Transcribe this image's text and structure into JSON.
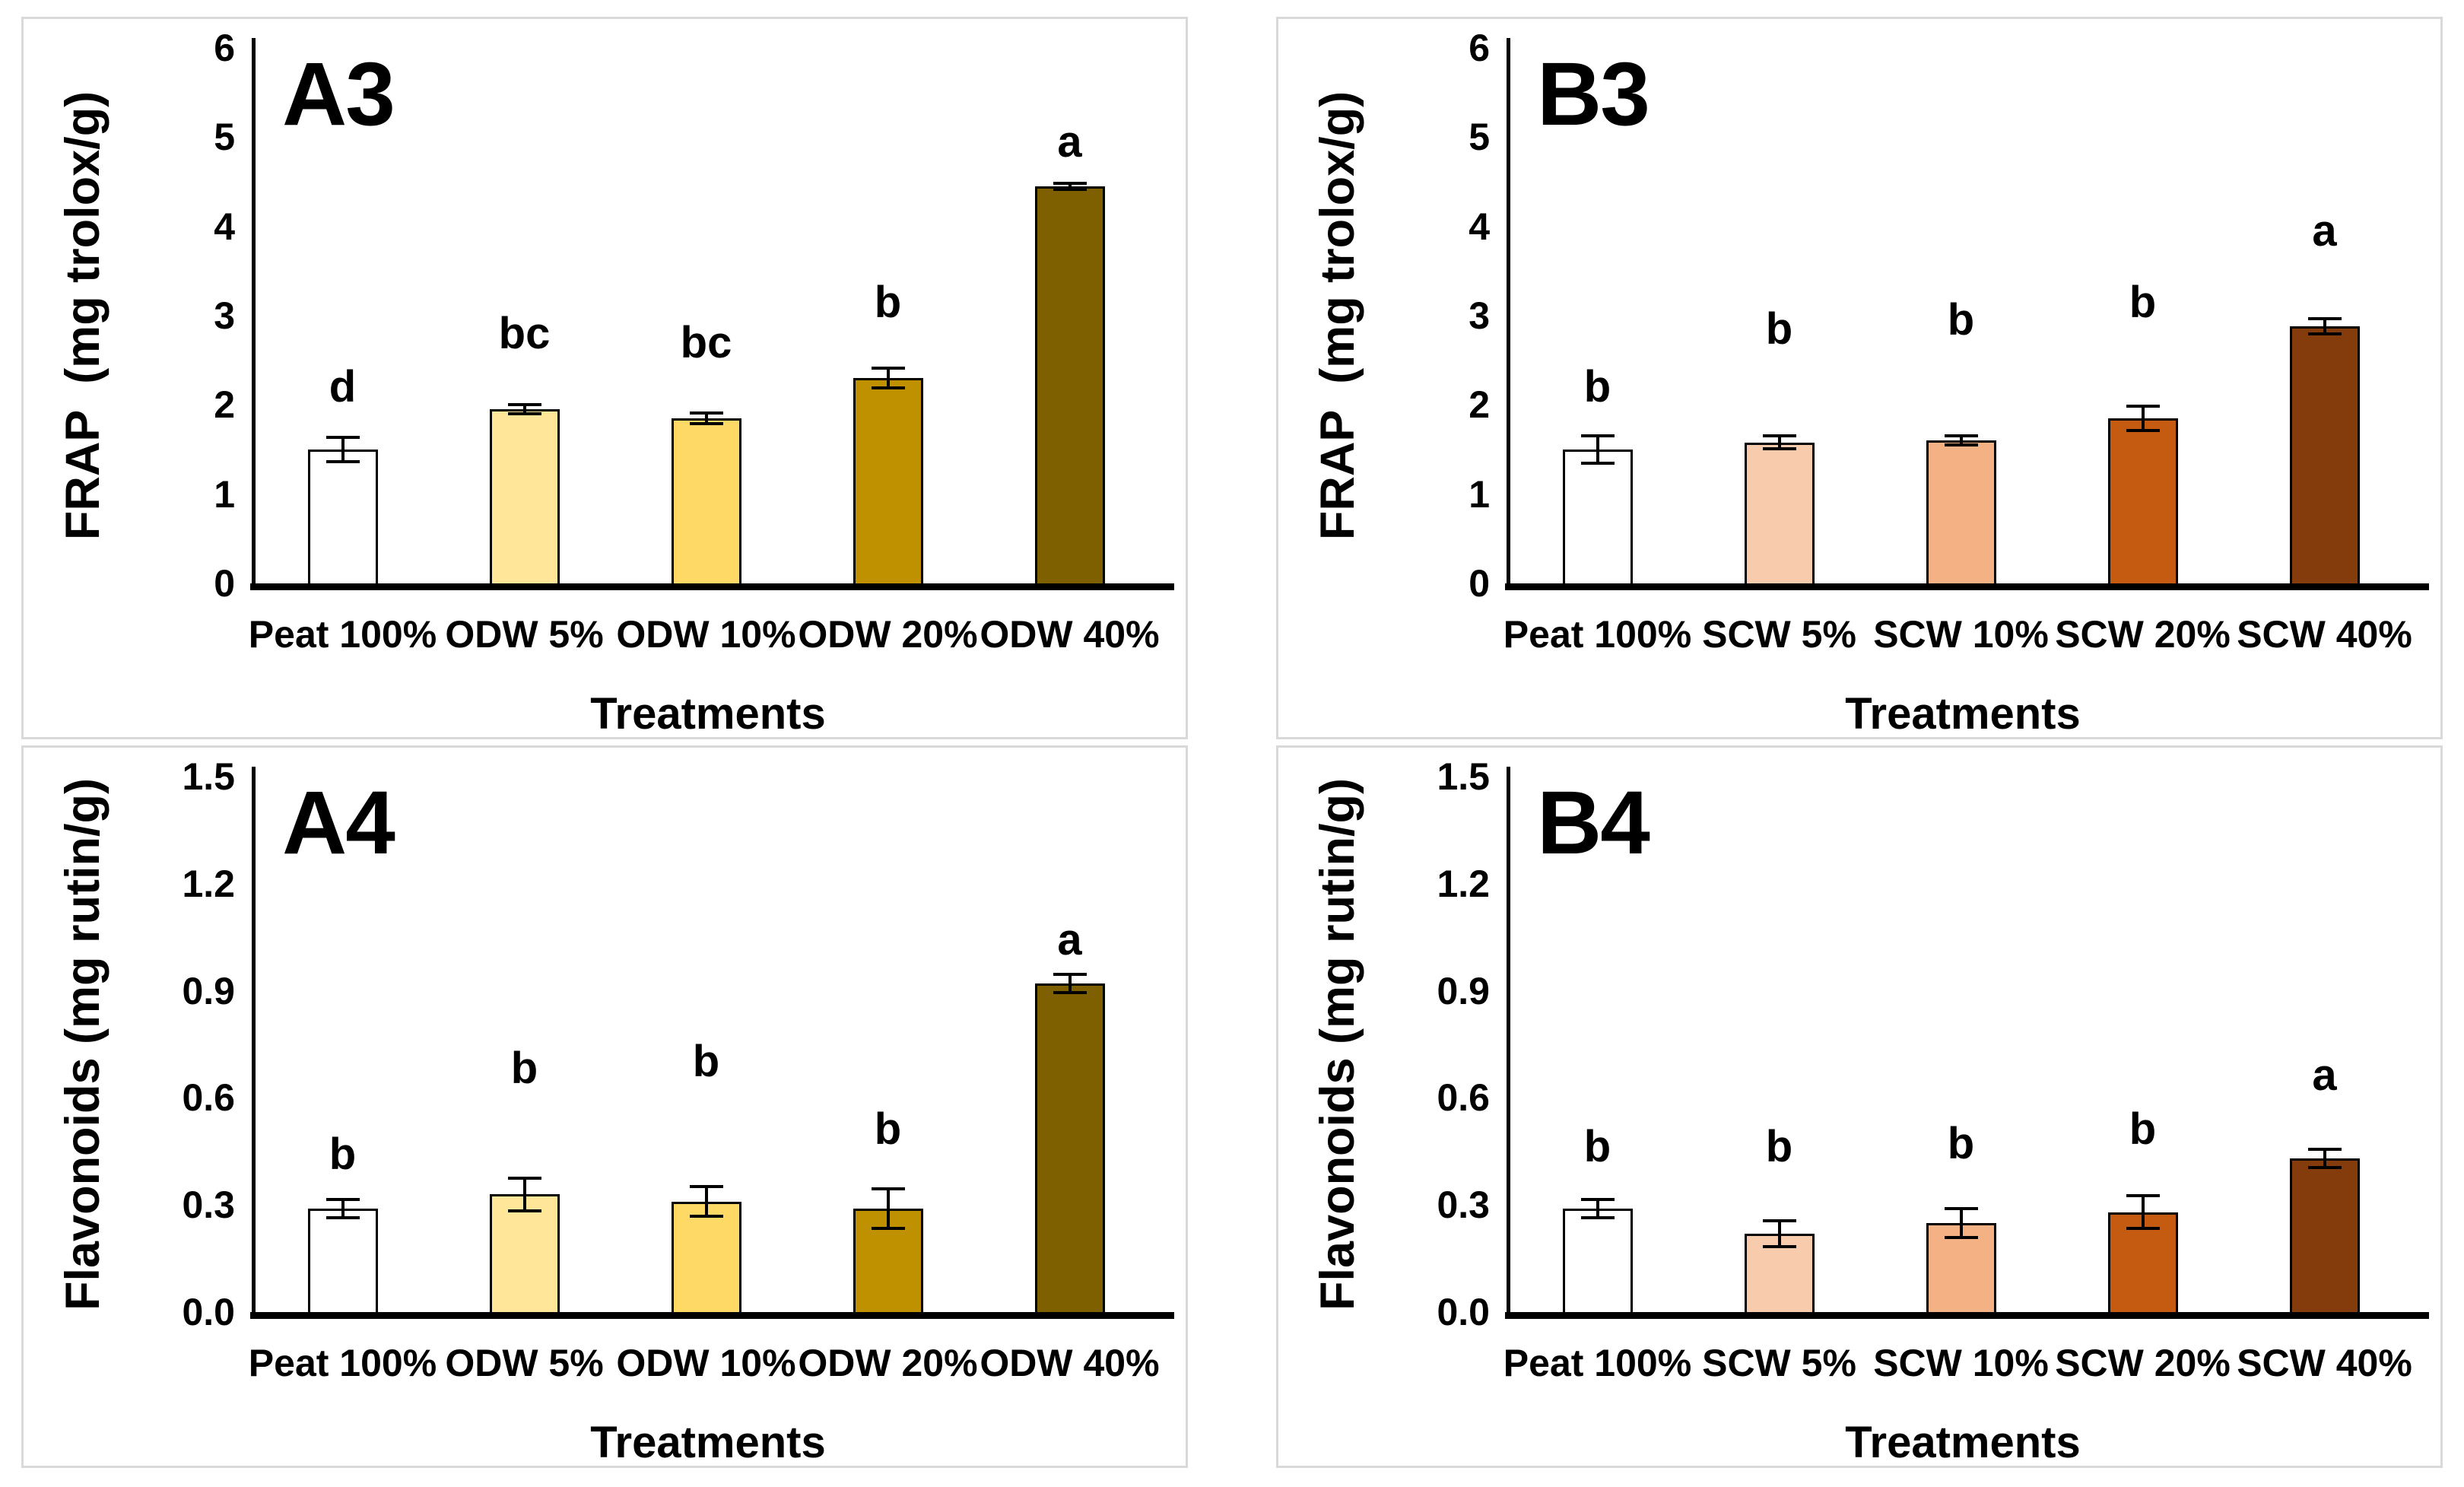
{
  "figure": {
    "background": "#ffffff",
    "panel_border_color": "#d9d9d9",
    "axis_color": "#000000",
    "bar_border_color": "#000000",
    "text_color": "#000000"
  },
  "chart_data": [
    {
      "type": "bar",
      "title": "A3",
      "ylabel": "FRAP  (mg trolox/g)",
      "xlabel": "Treatments",
      "ylim": [
        0,
        6
      ],
      "y_ticks": [
        "0",
        "1",
        "2",
        "3",
        "4",
        "5",
        "6"
      ],
      "grid": false,
      "legend": "none",
      "categories": [
        "Peat 100%",
        "ODW 5%",
        "ODW 10%",
        "ODW 20%",
        "ODW 40%"
      ],
      "values": [
        1.5,
        1.95,
        1.85,
        2.3,
        4.45
      ],
      "errors": [
        0.15,
        0.07,
        0.08,
        0.13,
        0.05
      ],
      "sig_letters": [
        "d",
        "bc",
        "bc",
        "b",
        "a"
      ],
      "sig_letter_y": [
        1.95,
        2.55,
        2.45,
        2.9,
        4.7
      ],
      "bar_colors": [
        "#FFFFFF",
        "#FFE699",
        "#FFD966",
        "#BF9000",
        "#7F6000"
      ]
    },
    {
      "type": "bar",
      "title": "B3",
      "ylabel": "FRAP  (mg trolox/g)",
      "xlabel": "Treatments",
      "ylim": [
        0,
        6
      ],
      "y_ticks": [
        "0",
        "1",
        "2",
        "3",
        "4",
        "5",
        "6"
      ],
      "grid": false,
      "legend": "none",
      "categories": [
        "Peat 100%",
        "SCW 5%",
        "SCW 10%",
        "SCW 20%",
        "SCW 40%"
      ],
      "values": [
        1.5,
        1.58,
        1.6,
        1.85,
        2.88
      ],
      "errors": [
        0.17,
        0.09,
        0.07,
        0.15,
        0.1
      ],
      "sig_letters": [
        "b",
        "b",
        "b",
        "b",
        "a"
      ],
      "sig_letter_y": [
        1.95,
        2.6,
        2.7,
        2.9,
        3.7
      ],
      "bar_colors": [
        "#FFFFFF",
        "#F8CBAD",
        "#F4B183",
        "#C55A11",
        "#843C0C"
      ]
    },
    {
      "type": "bar",
      "title": "A4",
      "ylabel": "Flavonoids (mg rutin/g)",
      "xlabel": "Treatments",
      "ylim": [
        0,
        1.5
      ],
      "y_ticks": [
        "0.0",
        "0.3",
        "0.6",
        "0.9",
        "1.2",
        "1.5"
      ],
      "grid": false,
      "legend": "none",
      "categories": [
        "Peat 100%",
        "ODW 5%",
        "ODW 10%",
        "ODW 20%",
        "ODW 40%"
      ],
      "values": [
        0.29,
        0.33,
        0.31,
        0.29,
        0.92
      ],
      "errors": [
        0.03,
        0.05,
        0.045,
        0.06,
        0.03
      ],
      "sig_letters": [
        "b",
        "b",
        "b",
        "b",
        "a"
      ],
      "sig_letter_y": [
        0.38,
        0.62,
        0.64,
        0.45,
        0.98
      ],
      "bar_colors": [
        "#FFFFFF",
        "#FFE699",
        "#FFD966",
        "#BF9000",
        "#7F6000"
      ]
    },
    {
      "type": "bar",
      "title": "B4",
      "ylabel": "Flavonoids (mg rutin/g)",
      "xlabel": "Treatments",
      "ylim": [
        0,
        1.5
      ],
      "y_ticks": [
        "0.0",
        "0.3",
        "0.6",
        "0.9",
        "1.2",
        "1.5"
      ],
      "grid": false,
      "legend": "none",
      "categories": [
        "Peat 100%",
        "SCW 5%",
        "SCW 10%",
        "SCW 20%",
        "SCW 40%"
      ],
      "values": [
        0.29,
        0.22,
        0.25,
        0.28,
        0.43
      ],
      "errors": [
        0.03,
        0.04,
        0.045,
        0.05,
        0.03
      ],
      "sig_letters": [
        "b",
        "b",
        "b",
        "b",
        "a"
      ],
      "sig_letter_y": [
        0.4,
        0.4,
        0.41,
        0.45,
        0.6
      ],
      "bar_colors": [
        "#FFFFFF",
        "#F8CBAD",
        "#F4B183",
        "#C55A11",
        "#843C0C"
      ]
    }
  ]
}
